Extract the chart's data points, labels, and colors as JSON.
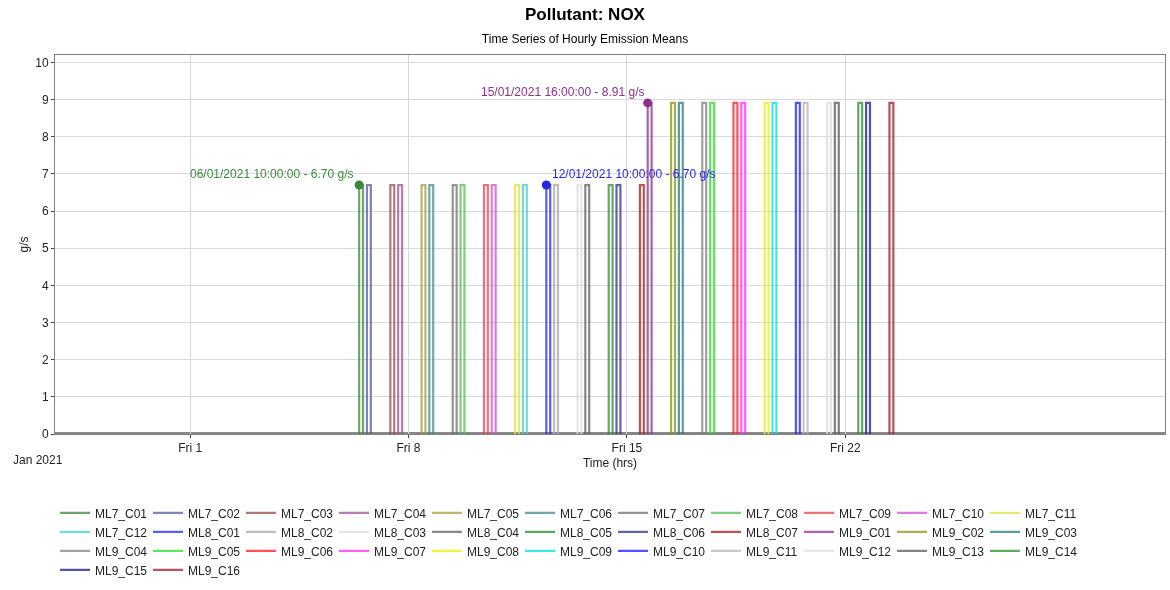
{
  "chart_data": {
    "type": "line",
    "title": "Pollutant: NOX",
    "subtitle": "Time Series of Hourly Emission Means",
    "xlabel": "Time (hrs)",
    "ylabel": "g/s",
    "xlim": [
      "2020-12-27T16:00",
      "2021-02-01T06:00"
    ],
    "ylim": [
      0,
      10.2
    ],
    "xticks": [
      {
        "value": "2021-01-01",
        "label": "Fri 1"
      },
      {
        "value": "2021-01-08",
        "label": "Fri 8"
      },
      {
        "value": "2021-01-15",
        "label": "Fri 15"
      },
      {
        "value": "2021-01-22",
        "label": "Fri 22"
      }
    ],
    "yticks": [
      0,
      1,
      2,
      3,
      4,
      5,
      6,
      7,
      8,
      9,
      10
    ],
    "grid": true,
    "legend": "bottom",
    "marker": "none",
    "line_style": "solid",
    "annotations": [
      {
        "text": "06/01/2021 10:00:00 - 6.70 g/s",
        "x": "2021-01-06T10:00",
        "y": 6.7
      },
      {
        "text": "12/01/2021 10:00:00 - 6.70 g/s",
        "x": "2021-01-12T10:00",
        "y": 6.7
      },
      {
        "text": "15/01/2021 16:00:00 - 8.91 g/s",
        "x": "2021-01-15T16:00",
        "y": 8.91
      },
      "Jan 2021"
    ],
    "series": [
      {
        "name": "ML7_C01",
        "color": "#3a8a3a",
        "x": [
          "2021-01-06T10:00",
          "2021-01-06T10:00",
          "2021-01-06T13:00",
          "2021-01-06T13:00"
        ],
        "values": [
          0,
          6.7,
          6.7,
          0
        ]
      },
      {
        "name": "ML7_C02",
        "color": "#5858a8",
        "x": [
          "2021-01-06T16:00",
          "2021-01-06T16:00",
          "2021-01-06T19:00",
          "2021-01-06T19:00"
        ],
        "values": [
          0,
          6.7,
          6.7,
          0
        ]
      },
      {
        "name": "ML7_C03",
        "color": "#984c4c",
        "x": [
          "2021-01-07T10:00",
          "2021-01-07T10:00",
          "2021-01-07T13:00",
          "2021-01-07T13:00"
        ],
        "values": [
          0,
          6.7,
          6.7,
          0
        ]
      },
      {
        "name": "ML7_C04",
        "color": "#a050a0",
        "x": [
          "2021-01-07T16:00",
          "2021-01-07T16:00",
          "2021-01-07T19:00",
          "2021-01-07T19:00"
        ],
        "values": [
          0,
          6.7,
          6.7,
          0
        ]
      },
      {
        "name": "ML7_C05",
        "color": "#a0a040",
        "x": [
          "2021-01-08T10:00",
          "2021-01-08T10:00",
          "2021-01-08T13:00",
          "2021-01-08T13:00"
        ],
        "values": [
          0,
          6.7,
          6.7,
          0
        ]
      },
      {
        "name": "ML7_C06",
        "color": "#408c8c",
        "x": [
          "2021-01-08T16:00",
          "2021-01-08T16:00",
          "2021-01-08T19:00",
          "2021-01-08T19:00"
        ],
        "values": [
          0,
          6.7,
          6.7,
          0
        ]
      },
      {
        "name": "ML7_C07",
        "color": "#707070",
        "x": [
          "2021-01-09T10:00",
          "2021-01-09T10:00",
          "2021-01-09T13:00",
          "2021-01-09T13:00"
        ],
        "values": [
          0,
          6.7,
          6.7,
          0
        ]
      },
      {
        "name": "ML7_C08",
        "color": "#50c050",
        "x": [
          "2021-01-09T16:00",
          "2021-01-09T16:00",
          "2021-01-09T19:00",
          "2021-01-09T19:00"
        ],
        "values": [
          0,
          6.7,
          6.7,
          0
        ]
      },
      {
        "name": "ML7_C09",
        "color": "#e04848",
        "x": [
          "2021-01-10T10:00",
          "2021-01-10T10:00",
          "2021-01-10T13:00",
          "2021-01-10T13:00"
        ],
        "values": [
          0,
          6.7,
          6.7,
          0
        ]
      },
      {
        "name": "ML7_C10",
        "color": "#d050d0",
        "x": [
          "2021-01-10T16:00",
          "2021-01-10T16:00",
          "2021-01-10T19:00",
          "2021-01-10T19:00"
        ],
        "values": [
          0,
          6.7,
          6.7,
          0
        ]
      },
      {
        "name": "ML7_C11",
        "color": "#e0e040",
        "x": [
          "2021-01-11T10:00",
          "2021-01-11T10:00",
          "2021-01-11T13:00",
          "2021-01-11T13:00"
        ],
        "values": [
          0,
          6.7,
          6.7,
          0
        ]
      },
      {
        "name": "ML7_C12",
        "color": "#40d0d0",
        "x": [
          "2021-01-11T16:00",
          "2021-01-11T16:00",
          "2021-01-11T19:00",
          "2021-01-11T19:00"
        ],
        "values": [
          0,
          6.7,
          6.7,
          0
        ]
      },
      {
        "name": "ML8_C01",
        "color": "#2828e0",
        "x": [
          "2021-01-12T10:00",
          "2021-01-12T10:00",
          "2021-01-12T13:00",
          "2021-01-12T13:00"
        ],
        "values": [
          0,
          6.7,
          6.7,
          0
        ]
      },
      {
        "name": "ML8_C02",
        "color": "#a8a8a8",
        "x": [
          "2021-01-12T16:00",
          "2021-01-12T16:00",
          "2021-01-12T19:00",
          "2021-01-12T19:00"
        ],
        "values": [
          0,
          6.7,
          6.7,
          0
        ]
      },
      {
        "name": "ML8_C03",
        "color": "#dcdcdc",
        "x": [
          "2021-01-13T10:00",
          "2021-01-13T10:00",
          "2021-01-13T13:00",
          "2021-01-13T13:00"
        ],
        "values": [
          0,
          6.7,
          6.7,
          0
        ]
      },
      {
        "name": "ML8_C04",
        "color": "#606060",
        "x": [
          "2021-01-13T16:00",
          "2021-01-13T16:00",
          "2021-01-13T19:00",
          "2021-01-13T19:00"
        ],
        "values": [
          0,
          6.7,
          6.7,
          0
        ]
      },
      {
        "name": "ML8_C05",
        "color": "#2e8b2e",
        "x": [
          "2021-01-14T10:00",
          "2021-01-14T10:00",
          "2021-01-14T13:00",
          "2021-01-14T13:00"
        ],
        "values": [
          0,
          6.7,
          6.7,
          0
        ]
      },
      {
        "name": "ML8_C06",
        "color": "#303088",
        "x": [
          "2021-01-14T16:00",
          "2021-01-14T16:00",
          "2021-01-14T19:00",
          "2021-01-14T19:00"
        ],
        "values": [
          0,
          6.7,
          6.7,
          0
        ]
      },
      {
        "name": "ML8_C07",
        "color": "#a01c1c",
        "x": [
          "2021-01-15T10:00",
          "2021-01-15T10:00",
          "2021-01-15T13:00",
          "2021-01-15T13:00"
        ],
        "values": [
          0,
          6.7,
          6.7,
          0
        ]
      },
      {
        "name": "ML9_C01",
        "color": "#8e308e",
        "x": [
          "2021-01-15T16:00",
          "2021-01-15T16:00",
          "2021-01-15T19:00",
          "2021-01-15T19:00"
        ],
        "values": [
          0,
          8.91,
          8.91,
          0
        ]
      },
      {
        "name": "ML9_C02",
        "color": "#909018",
        "x": [
          "2021-01-16T10:00",
          "2021-01-16T10:00",
          "2021-01-16T13:00",
          "2021-01-16T13:00"
        ],
        "values": [
          0,
          8.91,
          8.91,
          0
        ]
      },
      {
        "name": "ML9_C03",
        "color": "#208080",
        "x": [
          "2021-01-16T16:00",
          "2021-01-16T16:00",
          "2021-01-16T19:00",
          "2021-01-16T19:00"
        ],
        "values": [
          0,
          8.91,
          8.91,
          0
        ]
      },
      {
        "name": "ML9_C04",
        "color": "#808080",
        "x": [
          "2021-01-17T10:00",
          "2021-01-17T10:00",
          "2021-01-17T13:00",
          "2021-01-17T13:00"
        ],
        "values": [
          0,
          8.91,
          8.91,
          0
        ]
      },
      {
        "name": "ML9_C05",
        "color": "#28e028",
        "x": [
          "2021-01-17T16:00",
          "2021-01-17T16:00",
          "2021-01-17T19:00",
          "2021-01-17T19:00"
        ],
        "values": [
          0,
          8.91,
          8.91,
          0
        ]
      },
      {
        "name": "ML9_C06",
        "color": "#ff1818",
        "x": [
          "2021-01-18T10:00",
          "2021-01-18T10:00",
          "2021-01-18T13:00",
          "2021-01-18T13:00"
        ],
        "values": [
          0,
          8.91,
          8.91,
          0
        ]
      },
      {
        "name": "ML9_C07",
        "color": "#ff28ff",
        "x": [
          "2021-01-18T16:00",
          "2021-01-18T16:00",
          "2021-01-18T19:00",
          "2021-01-18T19:00"
        ],
        "values": [
          0,
          8.91,
          8.91,
          0
        ]
      },
      {
        "name": "ML9_C08",
        "color": "#f0f000",
        "x": [
          "2021-01-19T10:00",
          "2021-01-19T10:00",
          "2021-01-19T13:00",
          "2021-01-19T13:00"
        ],
        "values": [
          0,
          8.91,
          8.91,
          0
        ]
      },
      {
        "name": "ML9_C09",
        "color": "#00e0e0",
        "x": [
          "2021-01-19T16:00",
          "2021-01-19T16:00",
          "2021-01-19T19:00",
          "2021-01-19T19:00"
        ],
        "values": [
          0,
          8.91,
          8.91,
          0
        ]
      },
      {
        "name": "ML9_C10",
        "color": "#1818ff",
        "x": [
          "2021-01-20T10:00",
          "2021-01-20T10:00",
          "2021-01-20T13:00",
          "2021-01-20T13:00"
        ],
        "values": [
          0,
          8.91,
          8.91,
          0
        ]
      },
      {
        "name": "ML9_C11",
        "color": "#b4b4b4",
        "x": [
          "2021-01-20T16:00",
          "2021-01-20T16:00",
          "2021-01-20T19:00",
          "2021-01-20T19:00"
        ],
        "values": [
          0,
          8.91,
          8.91,
          0
        ]
      },
      {
        "name": "ML9_C12",
        "color": "#dcdcdc",
        "x": [
          "2021-01-21T10:00",
          "2021-01-21T10:00",
          "2021-01-21T13:00",
          "2021-01-21T13:00"
        ],
        "values": [
          0,
          8.91,
          8.91,
          0
        ]
      },
      {
        "name": "ML9_C13",
        "color": "#585858",
        "x": [
          "2021-01-21T16:00",
          "2021-01-21T16:00",
          "2021-01-21T19:00",
          "2021-01-21T19:00"
        ],
        "values": [
          0,
          8.91,
          8.91,
          0
        ]
      },
      {
        "name": "ML9_C14",
        "color": "#289028",
        "x": [
          "2021-01-22T10:00",
          "2021-01-22T10:00",
          "2021-01-22T13:00",
          "2021-01-22T13:00"
        ],
        "values": [
          0,
          8.91,
          8.91,
          0
        ]
      },
      {
        "name": "ML9_C15",
        "color": "#181890",
        "x": [
          "2021-01-22T16:00",
          "2021-01-22T16:00",
          "2021-01-22T19:00",
          "2021-01-22T19:00"
        ],
        "values": [
          0,
          8.91,
          8.91,
          0
        ]
      },
      {
        "name": "ML9_C16",
        "color": "#a01828",
        "x": [
          "2021-01-23T10:00",
          "2021-01-23T10:00",
          "2021-01-23T13:00",
          "2021-01-23T13:00"
        ],
        "values": [
          0,
          8.91,
          8.91,
          0
        ]
      }
    ]
  }
}
